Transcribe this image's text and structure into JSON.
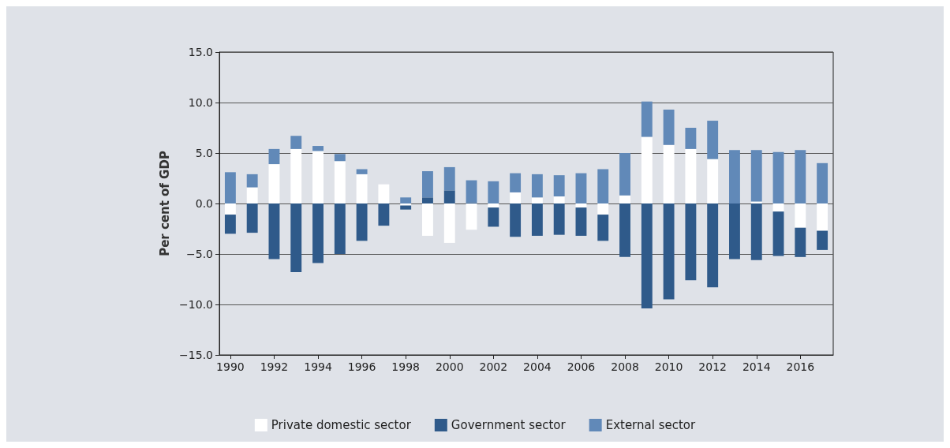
{
  "chart_data": {
    "type": "bar",
    "stacked": true,
    "ylabel": "Per cent of GDP",
    "categories": [
      "1990",
      null,
      "1992",
      null,
      "1994",
      null,
      "1996",
      null,
      "1998",
      null,
      "2000",
      null,
      "2002",
      null,
      "2004",
      null,
      "2006",
      null,
      "2008",
      null,
      "2010",
      null,
      "2012",
      null,
      "2014",
      null,
      "2016",
      null
    ],
    "series": [
      {
        "name": "Private domestic sector",
        "color": "#ffffff",
        "values": [
          -1.1,
          1.6,
          3.9,
          5.4,
          5.2,
          4.2,
          2.9,
          1.9,
          -0.2,
          -3.2,
          -3.9,
          -2.6,
          -0.4,
          1.1,
          0.6,
          0.7,
          -0.4,
          -1.1,
          0.8,
          6.6,
          5.8,
          5.4,
          4.4,
          0,
          0.2,
          -0.8,
          -2.4,
          -2.7
        ]
      },
      {
        "name": "Government sector",
        "color": "#2f5a8a",
        "values": [
          -1.9,
          -2.9,
          -5.5,
          -6.8,
          -5.9,
          -5.0,
          -3.7,
          -2.2,
          -0.4,
          0.6,
          1.3,
          0.1,
          -1.9,
          -3.3,
          -3.2,
          -3.1,
          -2.8,
          -2.6,
          -5.3,
          -10.4,
          -9.5,
          -7.6,
          -8.3,
          -5.5,
          -5.6,
          -4.4,
          -2.9,
          -1.9
        ]
      },
      {
        "name": "External sector",
        "color": "#6189b8",
        "values": [
          3.1,
          1.3,
          1.5,
          1.3,
          0.5,
          0.7,
          0.5,
          0,
          0.6,
          2.6,
          2.3,
          2.2,
          2.2,
          1.9,
          2.3,
          2.1,
          3.0,
          3.4,
          4.2,
          3.5,
          3.5,
          2.1,
          3.8,
          5.3,
          5.1,
          5.1,
          5.3,
          4.0
        ]
      }
    ],
    "ylim": [
      -15,
      15
    ],
    "yticks": [
      {
        "value": -15,
        "label": "−15.0"
      },
      {
        "value": -10,
        "label": "−10.0"
      },
      {
        "value": -5,
        "label": "−5.0"
      },
      {
        "value": 0,
        "label": "0.0"
      },
      {
        "value": 5,
        "label": "5.0"
      },
      {
        "value": 10,
        "label": "10.0"
      },
      {
        "value": 15,
        "label": "15.0"
      }
    ],
    "grid": "y",
    "legend": "bottom"
  }
}
